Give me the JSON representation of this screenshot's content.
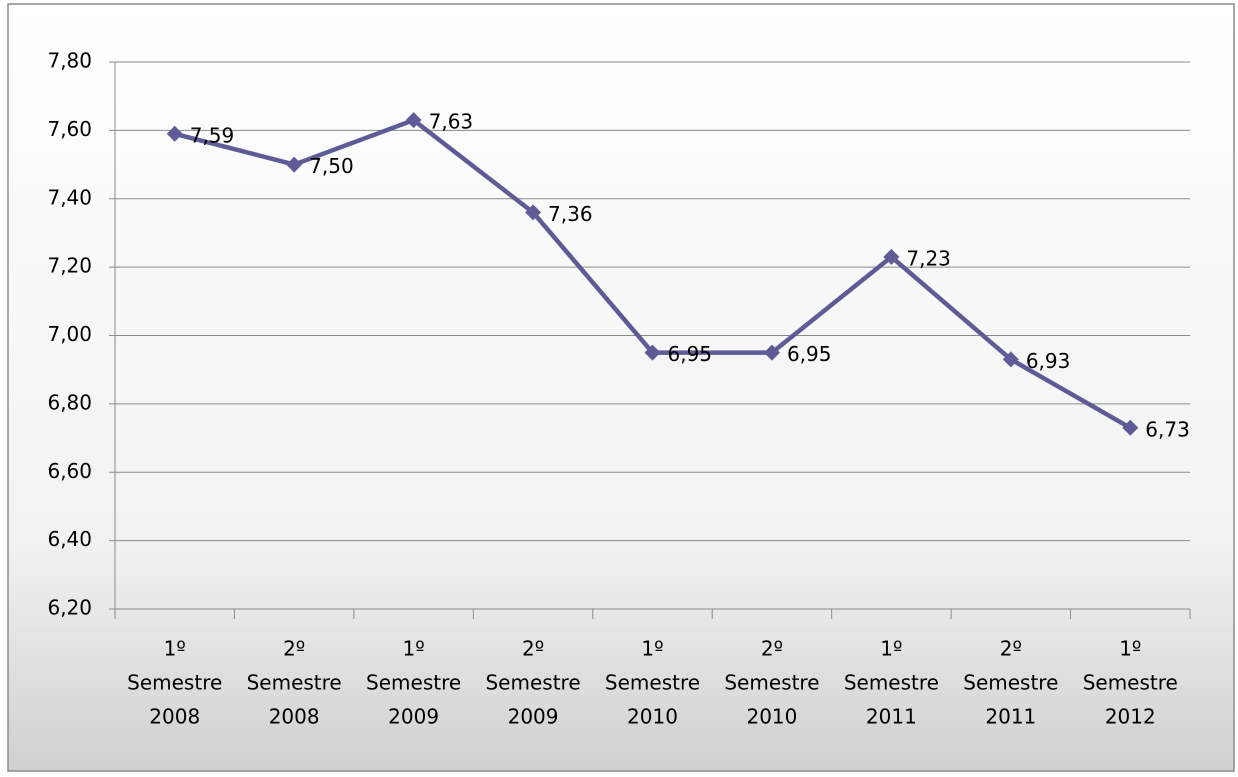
{
  "chart_data": {
    "type": "line",
    "categories": [
      [
        "1º",
        "Semestre",
        "2008"
      ],
      [
        "2º",
        "Semestre",
        "2008"
      ],
      [
        "1º",
        "Semestre",
        "2009"
      ],
      [
        "2º",
        "Semestre",
        "2009"
      ],
      [
        "1º",
        "Semestre",
        "2010"
      ],
      [
        "2º",
        "Semestre",
        "2010"
      ],
      [
        "1º",
        "Semestre",
        "2011"
      ],
      [
        "2º",
        "Semestre",
        "2011"
      ],
      [
        "1º",
        "Semestre",
        "2012"
      ]
    ],
    "values": [
      7.59,
      7.5,
      7.63,
      7.36,
      6.95,
      6.95,
      7.23,
      6.93,
      6.73
    ],
    "value_labels": [
      "7,59",
      "7,50",
      "7,63",
      "7,36",
      "6,95",
      "6,95",
      "7,23",
      "6,93",
      "6,73"
    ],
    "color": "#5f5b96",
    "ylim": [
      6.2,
      7.8
    ],
    "yticks": [
      {
        "value": 6.2,
        "label": "6,20"
      },
      {
        "value": 6.4,
        "label": "6,40"
      },
      {
        "value": 6.6,
        "label": "6,60"
      },
      {
        "value": 6.8,
        "label": "6,80"
      },
      {
        "value": 7.0,
        "label": "7,00"
      },
      {
        "value": 7.2,
        "label": "7,20"
      },
      {
        "value": 7.4,
        "label": "7,40"
      },
      {
        "value": 7.6,
        "label": "7,60"
      },
      {
        "value": 7.8,
        "label": "7,80"
      }
    ],
    "grid": true
  }
}
